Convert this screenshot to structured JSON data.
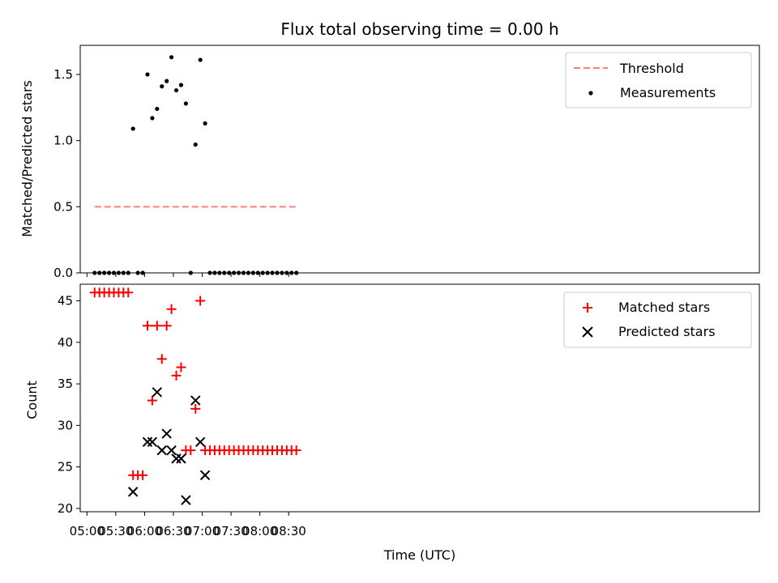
{
  "chart_data": [
    {
      "type": "scatter",
      "title": "Flux total observing time = 0.00 h",
      "xlabel": "",
      "ylabel": "Matched/Predicted stars",
      "ylim": [
        0,
        1.72
      ],
      "yticks": [
        "0.0",
        "0.5",
        "1.0",
        "1.5"
      ],
      "ytick_values": [
        0.0,
        0.5,
        1.0,
        1.5
      ],
      "xlim_minutes": [
        293,
        1000
      ],
      "legend_position": "top-right",
      "threshold": {
        "name": "Threshold",
        "value": 0.5,
        "x_start": "05:08",
        "x_end": "08:38",
        "color": "#ff7f7f"
      },
      "series": [
        {
          "name": "Measurements",
          "color": "#000000",
          "x": [
            "05:08",
            "05:13",
            "05:18",
            "05:23",
            "05:28",
            "05:33",
            "05:38",
            "05:43",
            "05:48",
            "05:53",
            "05:58",
            "06:03",
            "06:08",
            "06:13",
            "06:18",
            "06:23",
            "06:28",
            "06:33",
            "06:38",
            "06:43",
            "06:48",
            "06:53",
            "06:58",
            "07:03",
            "07:08",
            "07:13",
            "07:18",
            "07:23",
            "07:28",
            "07:33",
            "07:38",
            "07:43",
            "07:48",
            "07:53",
            "07:58",
            "08:03",
            "08:08",
            "08:13",
            "08:18",
            "08:23",
            "08:28",
            "08:33",
            "08:38"
          ],
          "y": [
            0.0,
            0.0,
            0.0,
            0.0,
            0.0,
            0.0,
            0.0,
            0.0,
            1.09,
            0.0,
            0.0,
            1.5,
            1.17,
            1.24,
            1.41,
            1.45,
            1.63,
            1.38,
            1.42,
            1.28,
            0.0,
            0.97,
            1.61,
            1.13,
            0.0,
            0.0,
            0.0,
            0.0,
            0.0,
            0.0,
            0.0,
            0.0,
            0.0,
            0.0,
            0.0,
            0.0,
            0.0,
            0.0,
            0.0,
            0.0,
            0.0,
            0.0,
            0.0
          ]
        }
      ]
    },
    {
      "type": "scatter",
      "title": "",
      "xlabel": "Time (UTC)",
      "ylabel": "Count",
      "ylim": [
        19.6,
        47.0
      ],
      "yticks": [
        "20",
        "25",
        "30",
        "35",
        "40",
        "45"
      ],
      "ytick_values": [
        20,
        25,
        30,
        35,
        40,
        45
      ],
      "xticks": [
        "05:00",
        "05:30",
        "06:00",
        "06:30",
        "07:00",
        "07:30",
        "08:00",
        "08:30"
      ],
      "xlim_minutes": [
        293,
        1000
      ],
      "legend_position": "top-right",
      "series": [
        {
          "name": "Matched stars",
          "marker": "plus",
          "color": "#ff0000",
          "x": [
            "05:08",
            "05:13",
            "05:18",
            "05:23",
            "05:28",
            "05:33",
            "05:38",
            "05:43",
            "05:48",
            "05:53",
            "05:58",
            "06:03",
            "06:08",
            "06:13",
            "06:18",
            "06:23",
            "06:28",
            "06:33",
            "06:38",
            "06:43",
            "06:48",
            "06:53",
            "06:58",
            "07:03",
            "07:08",
            "07:13",
            "07:18",
            "07:23",
            "07:28",
            "07:33",
            "07:38",
            "07:43",
            "07:48",
            "07:53",
            "07:58",
            "08:03",
            "08:08",
            "08:13",
            "08:18",
            "08:23",
            "08:28",
            "08:33",
            "08:38"
          ],
          "y": [
            46,
            46,
            46,
            46,
            46,
            46,
            46,
            46,
            24,
            24,
            24,
            42,
            33,
            42,
            38,
            42,
            44,
            36,
            37,
            27,
            27,
            32,
            45,
            27,
            27,
            27,
            27,
            27,
            27,
            27,
            27,
            27,
            27,
            27,
            27,
            27,
            27,
            27,
            27,
            27,
            27,
            27,
            27
          ]
        },
        {
          "name": "Predicted stars",
          "marker": "x",
          "color": "#000000",
          "x": [
            "05:48",
            "06:03",
            "06:08",
            "06:13",
            "06:18",
            "06:23",
            "06:28",
            "06:33",
            "06:38",
            "06:43",
            "06:53",
            "06:58",
            "07:03"
          ],
          "y": [
            22,
            28,
            28,
            34,
            27,
            29,
            27,
            26,
            26,
            21,
            33,
            28,
            24
          ]
        }
      ]
    }
  ]
}
